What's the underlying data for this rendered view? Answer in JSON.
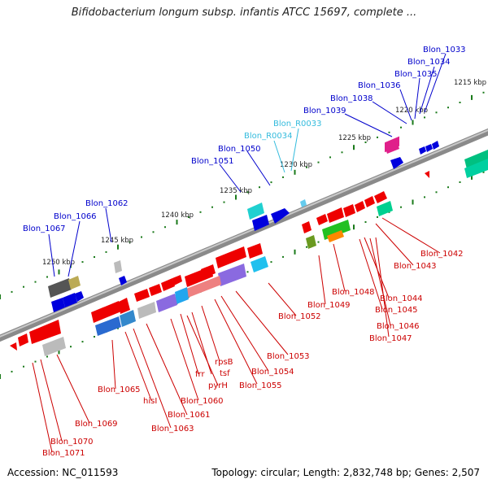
{
  "title": "Bifidobacterium longum subsp. infantis ATCC 15697, complete ...",
  "footer": {
    "accession": "Accession: NC_011593",
    "topology": "Topology: circular; Length: 2,832,748 bp; Genes: 2,507"
  },
  "colors": {
    "backbone": "#7f7f7f",
    "forward_label": "#0000cc",
    "rna_label": "#33bbdd",
    "reverse_label": "#cc0000",
    "tick": "#1a7a1a"
  },
  "scale_labels": [
    "1215 kbp",
    "1220 kbp",
    "1225 kbp",
    "1230 kbp",
    "1235 kbp",
    "1240 kbp",
    "1245 kbp",
    "1250 kbp"
  ],
  "top_labels": [
    {
      "text": "Blon_1033",
      "kind": "cds"
    },
    {
      "text": "Blon_1034",
      "kind": "cds"
    },
    {
      "text": "Blon_1035",
      "kind": "cds"
    },
    {
      "text": "Blon_1036",
      "kind": "cds"
    },
    {
      "text": "Blon_1038",
      "kind": "cds"
    },
    {
      "text": "Blon_1039",
      "kind": "cds"
    },
    {
      "text": "Blon_R0033",
      "kind": "rna"
    },
    {
      "text": "Blon_R0034",
      "kind": "rna"
    },
    {
      "text": "Blon_1050",
      "kind": "cds"
    },
    {
      "text": "Blon_1051",
      "kind": "cds"
    },
    {
      "text": "Blon_1062",
      "kind": "cds"
    },
    {
      "text": "Blon_1066",
      "kind": "cds"
    },
    {
      "text": "Blon_1067",
      "kind": "cds"
    }
  ],
  "bottom_labels": [
    "Blon_1042",
    "Blon_1043",
    "Blon_1044",
    "Blon_1045",
    "Blon_1046",
    "Blon_1047",
    "Blon_1048",
    "Blon_1049",
    "Blon_1052",
    "Blon_1053",
    "Blon_1054",
    "Blon_1055",
    "rpsB",
    "tsf",
    "pyrH",
    "frr",
    "Blon_1060",
    "Blon_1061",
    "Blon_1063",
    "hisI",
    "Blon_1065",
    "Blon_1069",
    "Blon_1070",
    "Blon_1071"
  ]
}
